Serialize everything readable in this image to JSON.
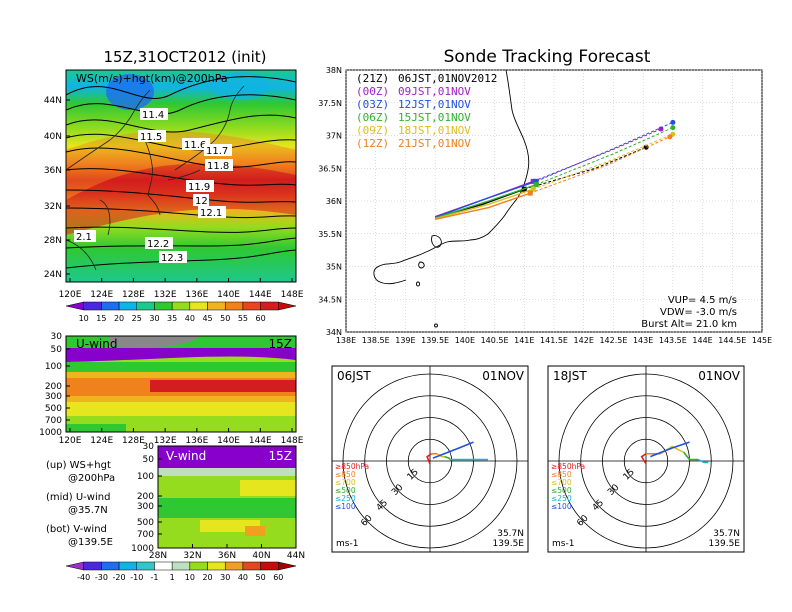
{
  "left_panel": {
    "title": "15Z,31OCT2012 (init)",
    "upper_map": {
      "label": "WS(m/s)+hgt(km)@200hPa",
      "lat_ticks": [
        "44N",
        "40N",
        "36N",
        "32N",
        "28N",
        "24N"
      ],
      "lon_ticks": [
        "120E",
        "124E",
        "128E",
        "132E",
        "136E",
        "140E",
        "144E",
        "148E"
      ],
      "contour_labels": [
        "11.4",
        "11.5",
        "11.6",
        "11.7",
        "11.8",
        "11.9",
        "12",
        "12.1",
        "2.1",
        "12.2",
        "12.3"
      ],
      "colorbar_ticks": [
        "10",
        "15",
        "20",
        "25",
        "30",
        "35",
        "40",
        "45",
        "50",
        "55",
        "60"
      ],
      "colorbar_colors": [
        "#8800cc",
        "#4a28e0",
        "#1e6ef0",
        "#0fb4e6",
        "#1ec88c",
        "#2fc832",
        "#96dc1e",
        "#e6e61e",
        "#f0b41e",
        "#f0821e",
        "#e6461e",
        "#d21e1e",
        "#c80a0a"
      ]
    },
    "u_wind": {
      "label": "U-wind",
      "time": "15Z",
      "p_ticks": [
        "30",
        "50",
        "100",
        "200",
        "300",
        "500",
        "700",
        "1000"
      ],
      "lon_ticks": [
        "120E",
        "124E",
        "128E",
        "132E",
        "136E",
        "140E",
        "144E",
        "148E"
      ]
    },
    "v_wind": {
      "label": "V-wind",
      "time": "15Z",
      "p_ticks": [
        "30",
        "50",
        "100",
        "200",
        "300",
        "500",
        "700",
        "1000"
      ],
      "lat_ticks": [
        "28N",
        "32N",
        "36N",
        "40N",
        "44N"
      ]
    },
    "legend_notes": [
      {
        "line1": "(up) WS+hgt",
        "line2": "@200hPa"
      },
      {
        "line1": "(mid) U-wind",
        "line2": "@35.7N"
      },
      {
        "line1": "(bot) V-wind",
        "line2": "@139.5E"
      }
    ],
    "bottom_colorbar_ticks": [
      "-40",
      "-30",
      "-20",
      "-10",
      "-1",
      "1",
      "10",
      "20",
      "30",
      "40",
      "50",
      "60"
    ],
    "bottom_colorbar_colors": [
      "#9b30c8",
      "#4a28e0",
      "#1e6ef0",
      "#0fb4e6",
      "#2ec8c8",
      "#ffffff",
      "#bfe0bf",
      "#96dc1e",
      "#e6e61e",
      "#f0a01e",
      "#e6461e",
      "#c80a0a",
      "#a00000"
    ]
  },
  "tracking": {
    "title": "Sonde Tracking Forecast",
    "launches": [
      {
        "code": "(21Z)",
        "local": "06JST,01NOV2012",
        "color": "#000000"
      },
      {
        "code": "(00Z)",
        "local": "09JST,01NOV",
        "color": "#a020c0"
      },
      {
        "code": "(03Z)",
        "local": "12JST,01NOV",
        "color": "#2050e0"
      },
      {
        "code": "(06Z)",
        "local": "15JST,01NOV",
        "color": "#30b030"
      },
      {
        "code": "(09Z)",
        "local": "18JST,01NOV",
        "color": "#d8c020"
      },
      {
        "code": "(12Z)",
        "local": "21JST,01NOV",
        "color": "#f08020"
      }
    ],
    "lat_ticks": [
      "38N",
      "37.5N",
      "37N",
      "36.5N",
      "36N",
      "35.5N",
      "35N",
      "34.5N",
      "34N"
    ],
    "lon_ticks": [
      "138E",
      "138.5E",
      "139E",
      "139.5E",
      "140E",
      "140.5E",
      "141E",
      "141.5E",
      "142E",
      "142.5E",
      "143E",
      "143.5E",
      "144E",
      "144.5E",
      "145E"
    ],
    "info": [
      "VUP=  4.5 m/s",
      "VDW= -3.0 m/s",
      "Burst Alt= 21.0 km"
    ]
  },
  "chart_data": {
    "type": "line",
    "title": "Sonde Tracking Forecast",
    "xlim": [
      138,
      145
    ],
    "ylim": [
      34,
      38
    ],
    "series": [
      {
        "name": "(21Z) 06JST,01NOV2012",
        "ascent": [
          [
            139.5,
            35.75
          ],
          [
            140.3,
            35.95
          ],
          [
            141.0,
            36.18
          ]
        ],
        "descent": [
          [
            141.0,
            36.18
          ],
          [
            142.2,
            36.5
          ],
          [
            143.05,
            36.82
          ]
        ]
      },
      {
        "name": "(00Z) 09JST,01NOV",
        "ascent": [
          [
            139.5,
            35.76
          ],
          [
            140.4,
            36.05
          ],
          [
            141.15,
            36.3
          ]
        ],
        "descent": [
          [
            141.15,
            36.3
          ],
          [
            142.4,
            36.75
          ],
          [
            143.3,
            37.1
          ]
        ]
      },
      {
        "name": "(03Z) 12JST,01NOV",
        "ascent": [
          [
            139.5,
            35.75
          ],
          [
            140.4,
            36.05
          ],
          [
            141.2,
            36.3
          ]
        ],
        "descent": [
          [
            141.2,
            36.3
          ],
          [
            142.5,
            36.8
          ],
          [
            143.5,
            37.2
          ]
        ]
      },
      {
        "name": "(06Z) 15JST,01NOV",
        "ascent": [
          [
            139.5,
            35.74
          ],
          [
            140.4,
            36.0
          ],
          [
            141.2,
            36.25
          ]
        ],
        "descent": [
          [
            141.2,
            36.25
          ],
          [
            142.5,
            36.72
          ],
          [
            143.5,
            37.12
          ]
        ]
      },
      {
        "name": "(09Z) 18JST,01NOV",
        "ascent": [
          [
            139.5,
            35.73
          ],
          [
            140.4,
            35.95
          ],
          [
            141.15,
            36.18
          ]
        ],
        "descent": [
          [
            141.15,
            36.18
          ],
          [
            142.4,
            36.6
          ],
          [
            143.5,
            37.02
          ]
        ]
      },
      {
        "name": "(12Z) 21JST,01NOV",
        "ascent": [
          [
            139.5,
            35.72
          ],
          [
            140.4,
            35.9
          ],
          [
            141.1,
            36.12
          ]
        ],
        "descent": [
          [
            141.1,
            36.12
          ],
          [
            142.4,
            36.55
          ],
          [
            143.45,
            36.98
          ]
        ]
      }
    ]
  },
  "hodographs": [
    {
      "time_label": "06JST",
      "date_label": "01NOV",
      "ring_labels": [
        "15",
        "30",
        "45",
        "60"
      ],
      "units": "ms-1",
      "loc_lat": "35.7N",
      "loc_lon": "139.5E",
      "layers": [
        {
          "label": "≥850hPa",
          "color": "#e02020"
        },
        {
          "label": "≤850",
          "color": "#f08020"
        },
        {
          "label": "≤700",
          "color": "#d8c020"
        },
        {
          "label": "≤500",
          "color": "#30b030"
        },
        {
          "label": "≤250",
          "color": "#20b0d0"
        },
        {
          "label": "≤100",
          "color": "#2050e0"
        }
      ],
      "trace": [
        {
          "color": "#e02020",
          "pts": [
            [
              0,
              2
            ],
            [
              -2,
              -3
            ],
            [
              1,
              -5
            ]
          ]
        },
        {
          "color": "#f08020",
          "pts": [
            [
              1,
              -5
            ],
            [
              3,
              -5
            ],
            [
              5,
              -5
            ]
          ]
        },
        {
          "color": "#d8c020",
          "pts": [
            [
              5,
              -5
            ],
            [
              8,
              -3
            ],
            [
              10,
              -3
            ]
          ]
        },
        {
          "color": "#30b030",
          "pts": [
            [
              10,
              -3
            ],
            [
              13,
              -2
            ],
            [
              14,
              -1
            ]
          ]
        },
        {
          "color": "#20b0d0",
          "pts": [
            [
              14,
              -1
            ],
            [
              30,
              -1
            ],
            [
              40,
              -1
            ]
          ]
        },
        {
          "color": "#2050e0",
          "pts": [
            [
              2,
              -2
            ],
            [
              20,
              -9
            ],
            [
              30,
              -13
            ]
          ]
        }
      ]
    },
    {
      "time_label": "18JST",
      "date_label": "01NOV",
      "ring_labels": [
        "15",
        "30",
        "45",
        "60"
      ],
      "units": "ms-1",
      "loc_lat": "35.7N",
      "loc_lon": "139.5E",
      "layers": [
        {
          "label": "≥850hPa",
          "color": "#e02020"
        },
        {
          "label": "≤850",
          "color": "#f08020"
        },
        {
          "label": "≤700",
          "color": "#d8c020"
        },
        {
          "label": "≤500",
          "color": "#30b030"
        },
        {
          "label": "≤250",
          "color": "#20b0d0"
        },
        {
          "label": "≤100",
          "color": "#2050e0"
        }
      ],
      "trace": [
        {
          "color": "#e02020",
          "pts": [
            [
              0,
              2
            ],
            [
              -3,
              -3
            ],
            [
              0,
              -5
            ]
          ]
        },
        {
          "color": "#f08020",
          "pts": [
            [
              0,
              -5
            ],
            [
              6,
              -5
            ],
            [
              10,
              -5
            ]
          ]
        },
        {
          "color": "#d8c020",
          "pts": [
            [
              10,
              -5
            ],
            [
              18,
              -10
            ],
            [
              26,
              -6
            ]
          ]
        },
        {
          "color": "#30b030",
          "pts": [
            [
              26,
              -6
            ],
            [
              30,
              -1
            ],
            [
              36,
              -1
            ]
          ]
        },
        {
          "color": "#20b0d0",
          "pts": [
            [
              36,
              -1
            ],
            [
              40,
              1
            ],
            [
              43,
              1
            ]
          ]
        },
        {
          "color": "#2050e0",
          "pts": [
            [
              3,
              -3
            ],
            [
              18,
              -9
            ],
            [
              30,
              -13
            ]
          ]
        }
      ]
    }
  ]
}
